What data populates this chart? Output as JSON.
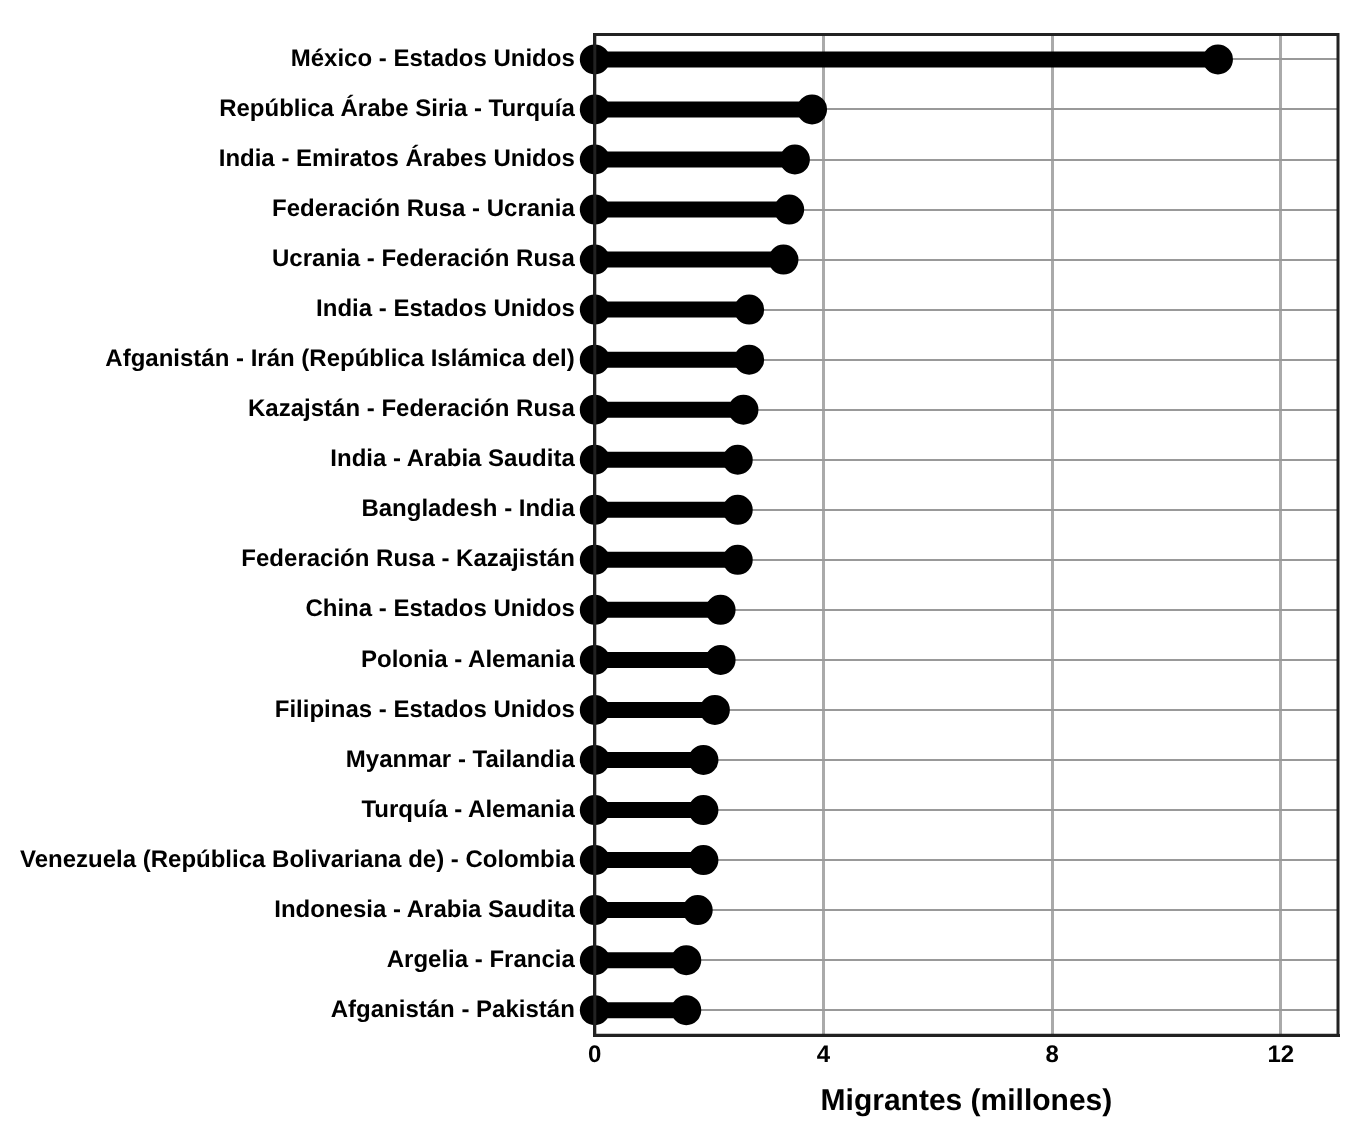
{
  "chart_data": {
    "orientation": "horizontal",
    "xlabel": "Migrantes (millones)",
    "categories": [
      "México - Estados Unidos",
      "República Árabe Siria - Turquía",
      "India - Emiratos Árabes Unidos",
      "Federación Rusa - Ucrania",
      "Ucrania - Federación Rusa",
      "India - Estados Unidos",
      "Afganistán - Irán (República Islámica del)",
      "Kazajstán - Federación Rusa",
      "India - Arabia Saudita",
      "Bangladesh - India",
      "Federación Rusa - Kazajistán",
      "China - Estados Unidos",
      "Polonia - Alemania",
      "Filipinas - Estados Unidos",
      "Myanmar - Tailandia",
      "Turquía - Alemania",
      "Venezuela (República Bolivariana de) - Colombia",
      "Indonesia - Arabia Saudita",
      "Argelia - Francia",
      "Afganistán - Pakistán"
    ],
    "series": [
      {
        "color": "#000000",
        "values": [
          10.9,
          3.8,
          3.5,
          3.4,
          3.3,
          2.7,
          2.7,
          2.6,
          2.5,
          2.5,
          2.5,
          2.2,
          2.2,
          2.1,
          1.9,
          1.9,
          1.9,
          1.8,
          1.6,
          1.6
        ]
      },
      {
        "type": "scatter",
        "color": "#000000",
        "values": [
          0,
          0,
          0,
          0,
          0,
          0,
          0,
          0,
          0,
          0,
          0,
          0,
          0,
          0,
          0,
          0,
          0,
          0,
          0,
          0
        ]
      }
    ],
    "type": "lollipop",
    "marker": "circle",
    "xlim": [
      0,
      13
    ],
    "xticks": [
      0,
      4,
      8,
      12
    ],
    "grid": true
  }
}
